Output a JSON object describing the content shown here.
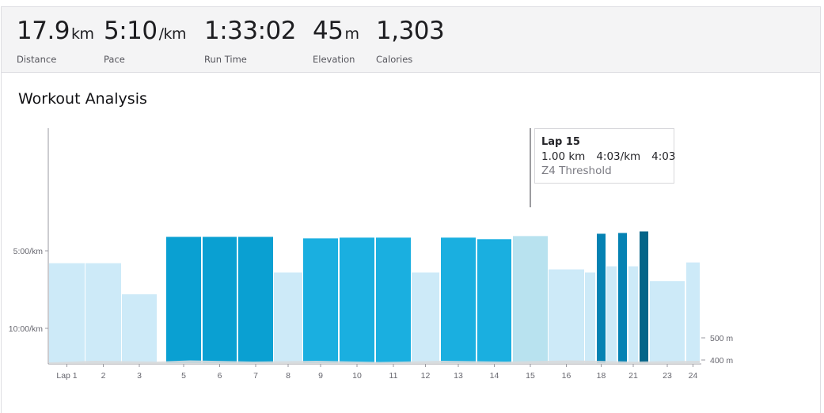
{
  "stats": [
    {
      "id": "distance",
      "value": "17.9",
      "unit": "km",
      "label": "Distance"
    },
    {
      "id": "pace",
      "value": "5:10",
      "unit": "/km",
      "label": "Pace"
    },
    {
      "id": "run_time",
      "value": "1:33:02",
      "unit": "",
      "label": "Run Time"
    },
    {
      "id": "elevation",
      "value": "45",
      "unit": "m",
      "label": "Elevation"
    },
    {
      "id": "calories",
      "value": "1,303",
      "unit": "",
      "label": "Calories"
    }
  ],
  "analysis": {
    "title": "Workout Analysis"
  },
  "tooltip": {
    "title": "Lap 15",
    "distance": "1.00 km",
    "pace": "4:03/km",
    "time": "4:03",
    "zone": "Z4 Threshold"
  },
  "colors": {
    "zone_easy": "#cdeaf8",
    "zone_moderate": "#1aafe0",
    "zone_threshold": "#0aa0d2",
    "zone_hard": "#0582b3",
    "zone_max": "#046589",
    "hover": "#b8e2ef",
    "elevation": "#d8dadc"
  },
  "chart_data": {
    "type": "bar",
    "title": "",
    "xlabel": "",
    "ylabel": "",
    "y_ticks_left": [
      "5:00/km",
      "10:00/km"
    ],
    "y_ticks_right": [
      "500 m",
      "400 m"
    ],
    "selected_lap": "15",
    "x_tick_labels": [
      "Lap 1",
      "2",
      "3",
      "5",
      "6",
      "7",
      "8",
      "9",
      "10",
      "11",
      "12",
      "13",
      "14",
      "15",
      "16",
      "18",
      "21",
      "23",
      "24"
    ],
    "laps": [
      {
        "lap": "1",
        "label": "Lap 1",
        "pace_min_per_km": 5.8,
        "zone": "easy"
      },
      {
        "lap": "2",
        "label": "2",
        "pace_min_per_km": 5.8,
        "zone": "easy"
      },
      {
        "lap": "3",
        "label": "3",
        "pace_min_per_km": 7.8,
        "zone": "easy"
      },
      {
        "lap": "4",
        "label": "",
        "pace_min_per_km": 0,
        "zone": "none"
      },
      {
        "lap": "5",
        "label": "5",
        "pace_min_per_km": 4.1,
        "zone": "threshold"
      },
      {
        "lap": "6",
        "label": "6",
        "pace_min_per_km": 4.1,
        "zone": "threshold"
      },
      {
        "lap": "7",
        "label": "7",
        "pace_min_per_km": 4.1,
        "zone": "threshold"
      },
      {
        "lap": "8",
        "label": "8",
        "pace_min_per_km": 6.4,
        "zone": "easy"
      },
      {
        "lap": "9",
        "label": "9",
        "pace_min_per_km": 4.2,
        "zone": "moderate"
      },
      {
        "lap": "10",
        "label": "10",
        "pace_min_per_km": 4.15,
        "zone": "moderate"
      },
      {
        "lap": "11",
        "label": "11",
        "pace_min_per_km": 4.15,
        "zone": "moderate"
      },
      {
        "lap": "12",
        "label": "12",
        "pace_min_per_km": 6.4,
        "zone": "easy"
      },
      {
        "lap": "13",
        "label": "13",
        "pace_min_per_km": 4.15,
        "zone": "moderate"
      },
      {
        "lap": "14",
        "label": "14",
        "pace_min_per_km": 4.25,
        "zone": "moderate"
      },
      {
        "lap": "15",
        "label": "15",
        "pace_min_per_km": 4.05,
        "zone": "threshold"
      },
      {
        "lap": "16",
        "label": "16",
        "pace_min_per_km": 6.2,
        "zone": "easy"
      },
      {
        "lap": "17",
        "label": "",
        "pace_min_per_km": 6.4,
        "zone": "easy"
      },
      {
        "lap": "18",
        "label": "18",
        "pace_min_per_km": 3.9,
        "zone": "hard"
      },
      {
        "lap": "19",
        "label": "",
        "pace_min_per_km": 6.0,
        "zone": "easy"
      },
      {
        "lap": "20",
        "label": "",
        "pace_min_per_km": 3.85,
        "zone": "hard"
      },
      {
        "lap": "21",
        "label": "21",
        "pace_min_per_km": 6.0,
        "zone": "easy"
      },
      {
        "lap": "22",
        "label": "",
        "pace_min_per_km": 3.75,
        "zone": "max"
      },
      {
        "lap": "23",
        "label": "23",
        "pace_min_per_km": 6.95,
        "zone": "easy"
      },
      {
        "lap": "24",
        "label": "24",
        "pace_min_per_km": 5.75,
        "zone": "easy"
      }
    ]
  }
}
